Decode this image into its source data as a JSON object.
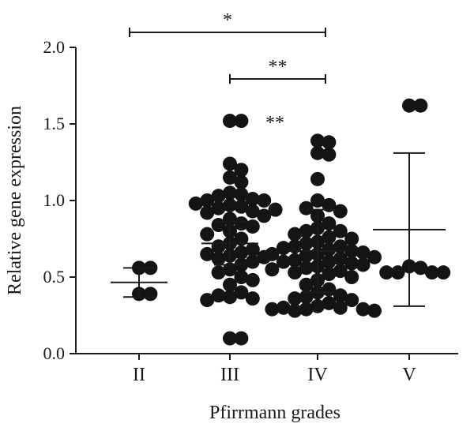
{
  "chart_data": {
    "type": "scatter",
    "xlabel": "Pfirrmann grades",
    "ylabel": "Relative gene expression",
    "ylim": [
      0,
      2.0
    ],
    "yticks": [
      "0.0",
      "0.5",
      "1.0",
      "1.5",
      "2.0"
    ],
    "categories": [
      "II",
      "III",
      "IV",
      "V"
    ],
    "groups": [
      {
        "category": "II",
        "mean": 0.465,
        "err_low": 0.37,
        "err_high": 0.56,
        "points": [
          0.56,
          0.56,
          0.39,
          0.39
        ]
      },
      {
        "category": "III",
        "mean": 0.72,
        "err_low": 0.58,
        "err_high": 0.86,
        "points": [
          1.52,
          1.52,
          1.24,
          1.2,
          1.15,
          1.12,
          1.05,
          1.04,
          1.03,
          1.01,
          1.0,
          1.0,
          0.98,
          0.97,
          0.96,
          0.95,
          0.94,
          0.93,
          0.92,
          0.9,
          0.88,
          0.85,
          0.84,
          0.83,
          0.8,
          0.78,
          0.75,
          0.72,
          0.7,
          0.68,
          0.66,
          0.65,
          0.64,
          0.63,
          0.62,
          0.6,
          0.58,
          0.55,
          0.53,
          0.5,
          0.48,
          0.45,
          0.4,
          0.38,
          0.37,
          0.36,
          0.35,
          0.1,
          0.1
        ]
      },
      {
        "category": "IV",
        "mean": 0.67,
        "err_low": 0.4,
        "err_high": 0.94,
        "points": [
          1.39,
          1.38,
          1.31,
          1.3,
          1.14,
          1.0,
          0.97,
          0.95,
          0.93,
          0.9,
          0.85,
          0.82,
          0.8,
          0.8,
          0.78,
          0.76,
          0.75,
          0.73,
          0.72,
          0.7,
          0.7,
          0.69,
          0.68,
          0.67,
          0.66,
          0.65,
          0.65,
          0.64,
          0.63,
          0.62,
          0.61,
          0.6,
          0.6,
          0.59,
          0.58,
          0.57,
          0.56,
          0.55,
          0.54,
          0.53,
          0.52,
          0.5,
          0.48,
          0.45,
          0.42,
          0.4,
          0.38,
          0.37,
          0.36,
          0.35,
          0.33,
          0.31,
          0.3,
          0.3,
          0.29,
          0.29,
          0.29,
          0.28,
          0.28
        ]
      },
      {
        "category": "V",
        "mean": 0.81,
        "err_low": 0.31,
        "err_high": 1.31,
        "points": [
          1.62,
          1.62,
          0.57,
          0.56,
          0.53,
          0.53,
          0.53,
          0.53
        ]
      }
    ],
    "significance": [
      {
        "from": "II",
        "to": "IV",
        "label": "*"
      },
      {
        "from": "III",
        "to": "IV",
        "label": "**"
      },
      {
        "at": "III-IV",
        "label": "**"
      }
    ],
    "grid": false,
    "legend": "none"
  }
}
